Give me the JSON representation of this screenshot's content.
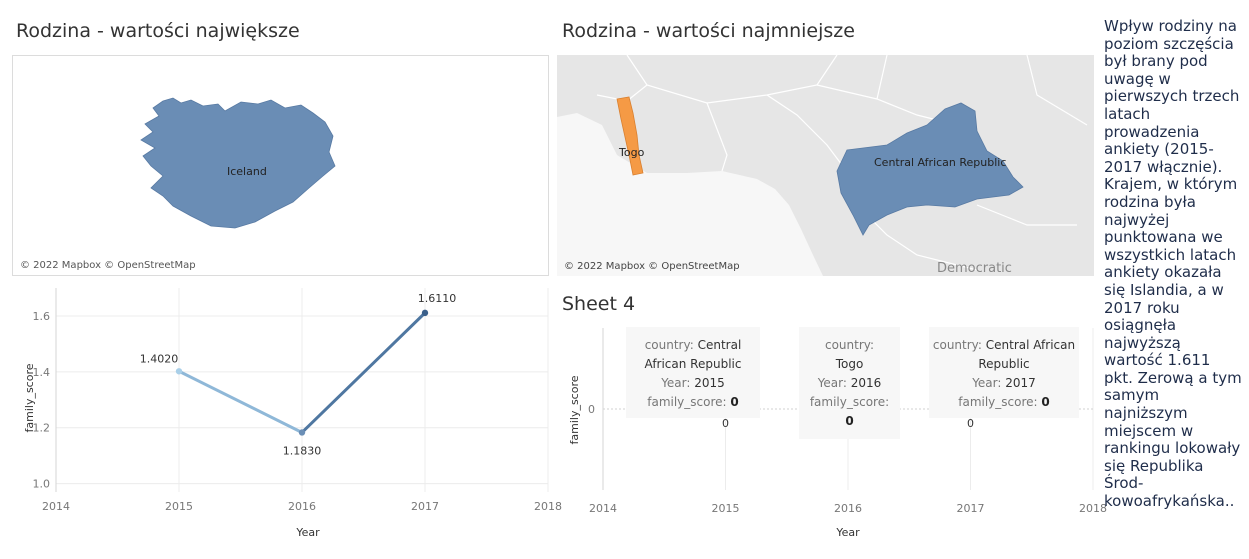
{
  "titles": {
    "map_max": "Rodzina - wartości największe",
    "map_min": "Rodzina - wartości najmniejsze",
    "sheet4": "Sheet 4"
  },
  "map_max": {
    "country_label": "Iceland",
    "attribution": "© 2022 Mapbox © OpenStreetMap",
    "fill_color": "#6a8db5"
  },
  "map_min": {
    "labels": [
      "Togo",
      "Central African Republic",
      "Democratic"
    ],
    "attribution": "© 2022 Mapbox © OpenStreetMap",
    "togo_color": "#f59a45",
    "car_color": "#6a8db5"
  },
  "chart_data": [
    {
      "type": "line",
      "x": [
        2015,
        2016,
        2017
      ],
      "values": [
        1.402,
        1.183,
        1.611
      ],
      "data_labels": [
        "1.4020",
        "1.1830",
        "1.6110"
      ],
      "xlabel": "Year",
      "ylabel": "family_score",
      "xlim": [
        2014,
        2018
      ],
      "ylim": [
        0.97,
        1.7
      ],
      "x_ticks": [
        "2014",
        "2015",
        "2016",
        "2017",
        "2018"
      ],
      "y_ticks": [
        "1.0",
        "1.2",
        "1.4",
        "1.6"
      ],
      "grid": true,
      "colors": [
        "#a9cfe8",
        "#3a5f8a"
      ]
    },
    {
      "type": "line",
      "x": [
        2015,
        2016,
        2017
      ],
      "values": [
        0,
        0,
        0
      ],
      "data_labels": [
        "0",
        "0",
        "0"
      ],
      "xlabel": "Year",
      "ylabel": "family_score",
      "xlim": [
        2014,
        2018
      ],
      "x_ticks": [
        "2014",
        "2015",
        "2016",
        "2017",
        "2018"
      ],
      "y_ticks": [
        "0"
      ],
      "grid": true
    }
  ],
  "tooltips": [
    {
      "country_key": "country:",
      "country": "Central African Republic",
      "year_key": "Year:",
      "year": "2015",
      "score_key": "family_score:",
      "score": "0"
    },
    {
      "country_key": "country:",
      "country": "Togo",
      "year_key": "Year:",
      "year": "2016",
      "score_key": "family_score:",
      "score": "0"
    },
    {
      "country_key": "country:",
      "country": "Central African Republic",
      "year_key": "Year:",
      "year": "2017",
      "score_key": "family_score:",
      "score": "0"
    }
  ],
  "side_text": "Wpływ rodziny na poziom szczęścia był brany pod uwagę w pierwszych trzech latach prowadzenia ankiety (2015-2017 włącznie). Krajem, w którym rodzina była najwyżej punktowana we wszystkich latach ankiety okazała się Islandia, a w 2017 roku osiągnęła najwyższą wartość 1.611 pkt. Zerową a tym samym najniższym miejscem w rankingu lokowały się Republika Środ-kowoafrykańska.."
}
